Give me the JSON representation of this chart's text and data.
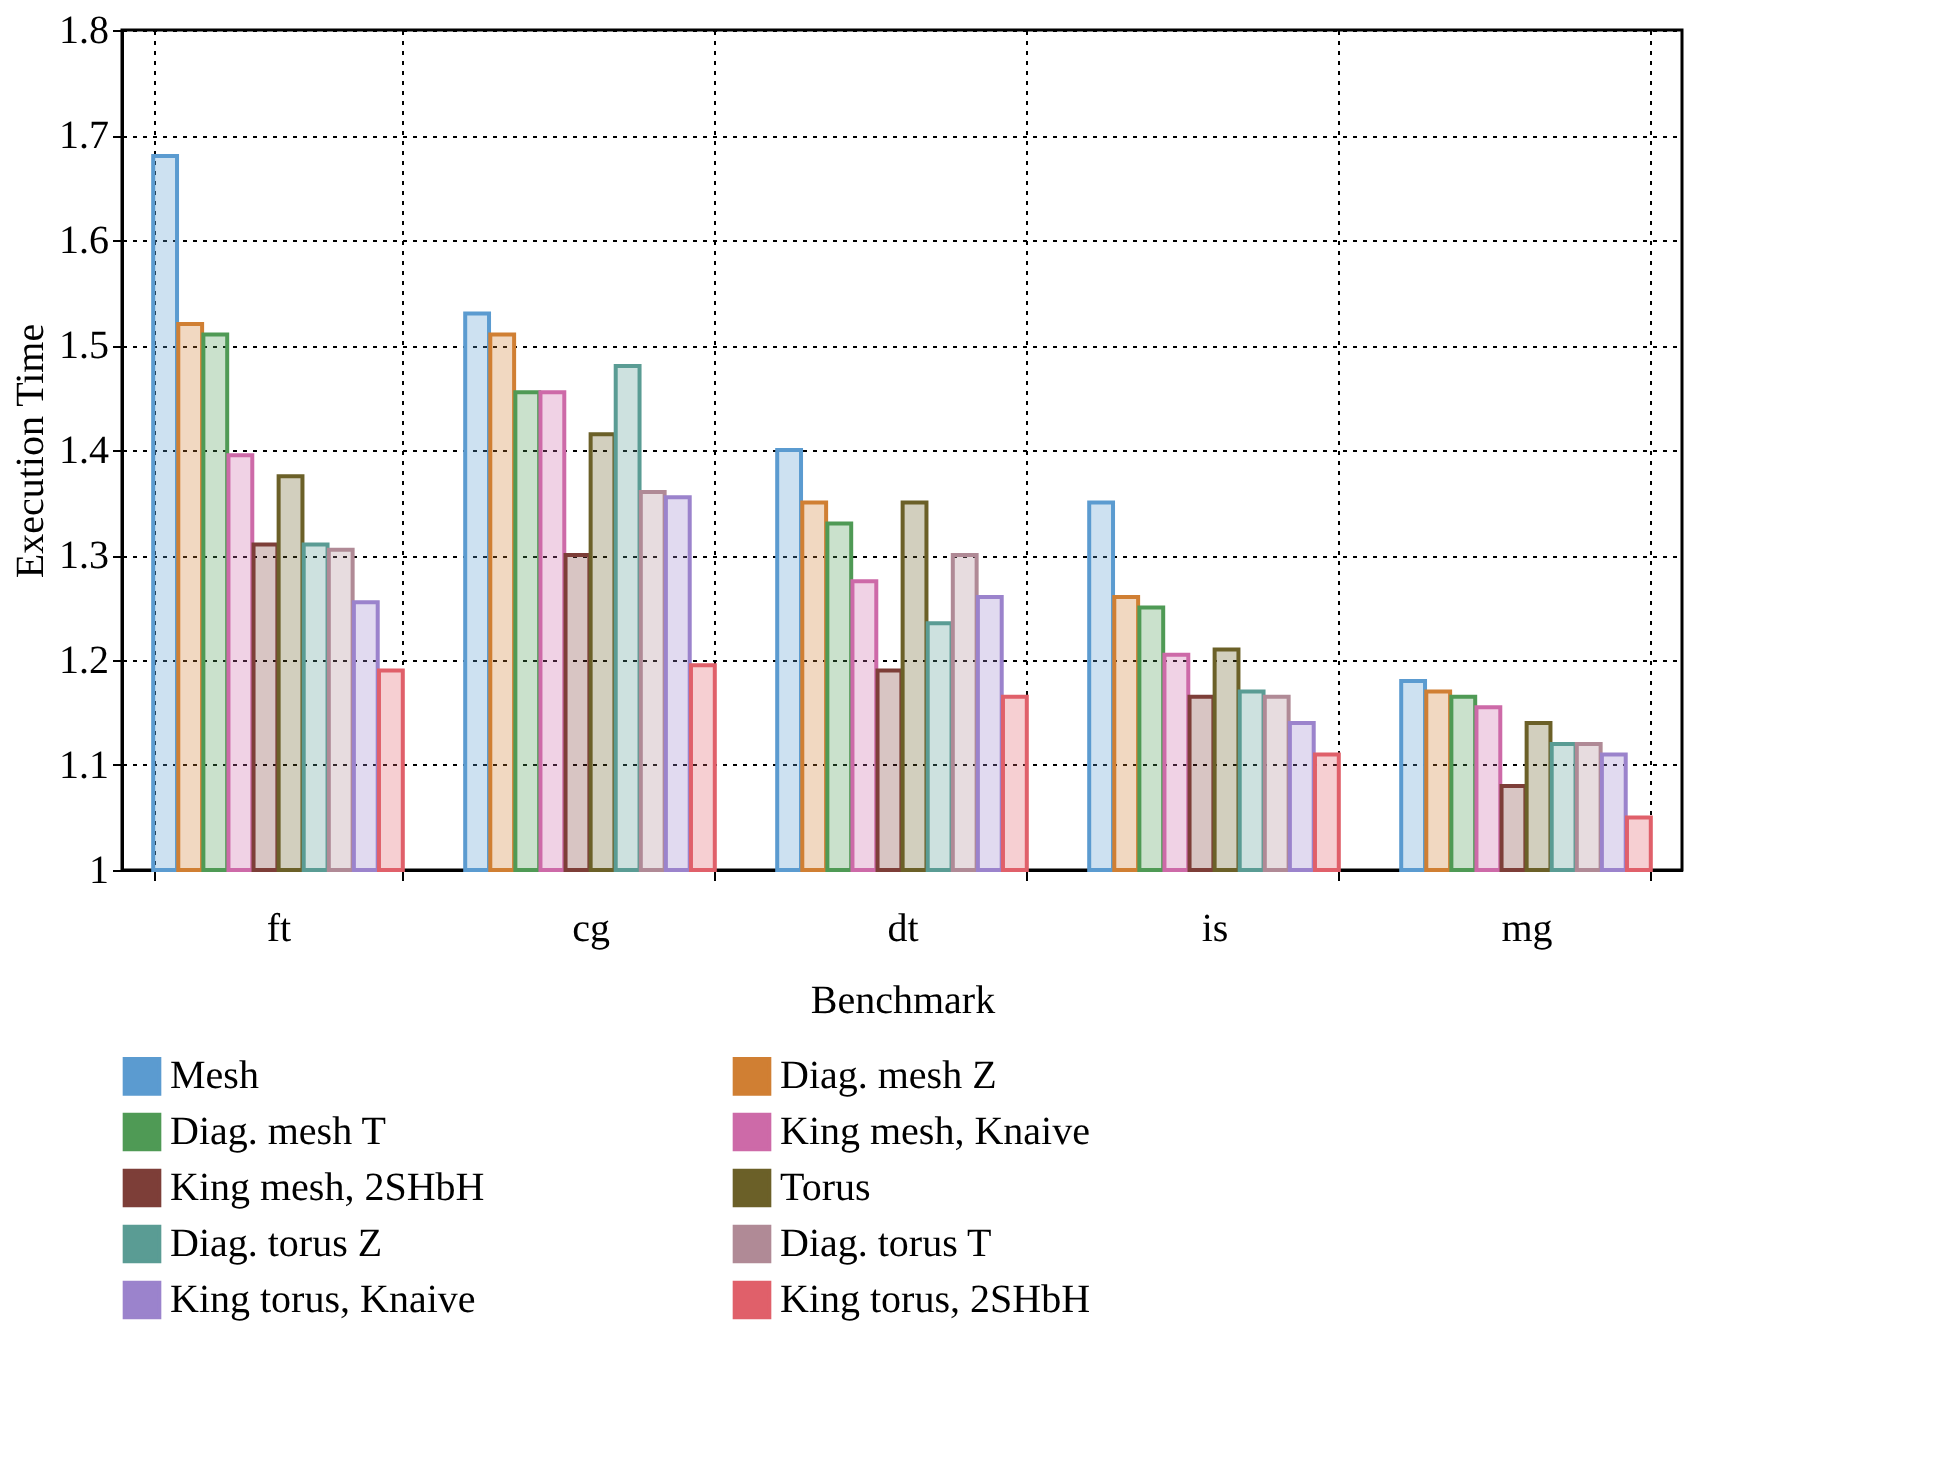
{
  "chart_data": {
    "type": "bar",
    "xlabel": "Benchmark",
    "ylabel": "Execution Time",
    "categories": [
      "ft",
      "cg",
      "dt",
      "is",
      "mg"
    ],
    "ylim": [
      1,
      1.8
    ],
    "yticks": [
      1,
      1.1,
      1.2,
      1.3,
      1.4,
      1.5,
      1.6,
      1.7,
      1.8
    ],
    "grid": true,
    "legend": "bottom",
    "series": [
      {
        "name": "Mesh",
        "color": "#5b9bd0",
        "values": [
          1.68,
          1.53,
          1.4,
          1.35,
          1.18
        ]
      },
      {
        "name": "Diag. mesh Z",
        "color": "#d07f33",
        "values": [
          1.52,
          1.51,
          1.35,
          1.26,
          1.17
        ]
      },
      {
        "name": "Diag. mesh T",
        "color": "#4f9a55",
        "values": [
          1.51,
          1.455,
          1.33,
          1.25,
          1.165
        ]
      },
      {
        "name": "King mesh, Knaive",
        "color": "#cd6aa8",
        "values": [
          1.395,
          1.455,
          1.275,
          1.205,
          1.155
        ]
      },
      {
        "name": "King mesh, 2SHbH",
        "color": "#7d3e38",
        "values": [
          1.31,
          1.3,
          1.19,
          1.165,
          1.08
        ]
      },
      {
        "name": "Torus",
        "color": "#6b6028",
        "values": [
          1.375,
          1.415,
          1.35,
          1.21,
          1.14
        ]
      },
      {
        "name": "Diag. torus Z",
        "color": "#5a9c94",
        "values": [
          1.31,
          1.48,
          1.235,
          1.17,
          1.12
        ]
      },
      {
        "name": "Diag. torus T",
        "color": "#b08a96",
        "values": [
          1.305,
          1.36,
          1.3,
          1.165,
          1.12
        ]
      },
      {
        "name": "King torus, Knaive",
        "color": "#9b83cc",
        "values": [
          1.255,
          1.355,
          1.26,
          1.14,
          1.11
        ]
      },
      {
        "name": "King torus, 2SHbH",
        "color": "#e0606a",
        "values": [
          1.19,
          1.195,
          1.165,
          1.11,
          1.05
        ]
      }
    ]
  }
}
